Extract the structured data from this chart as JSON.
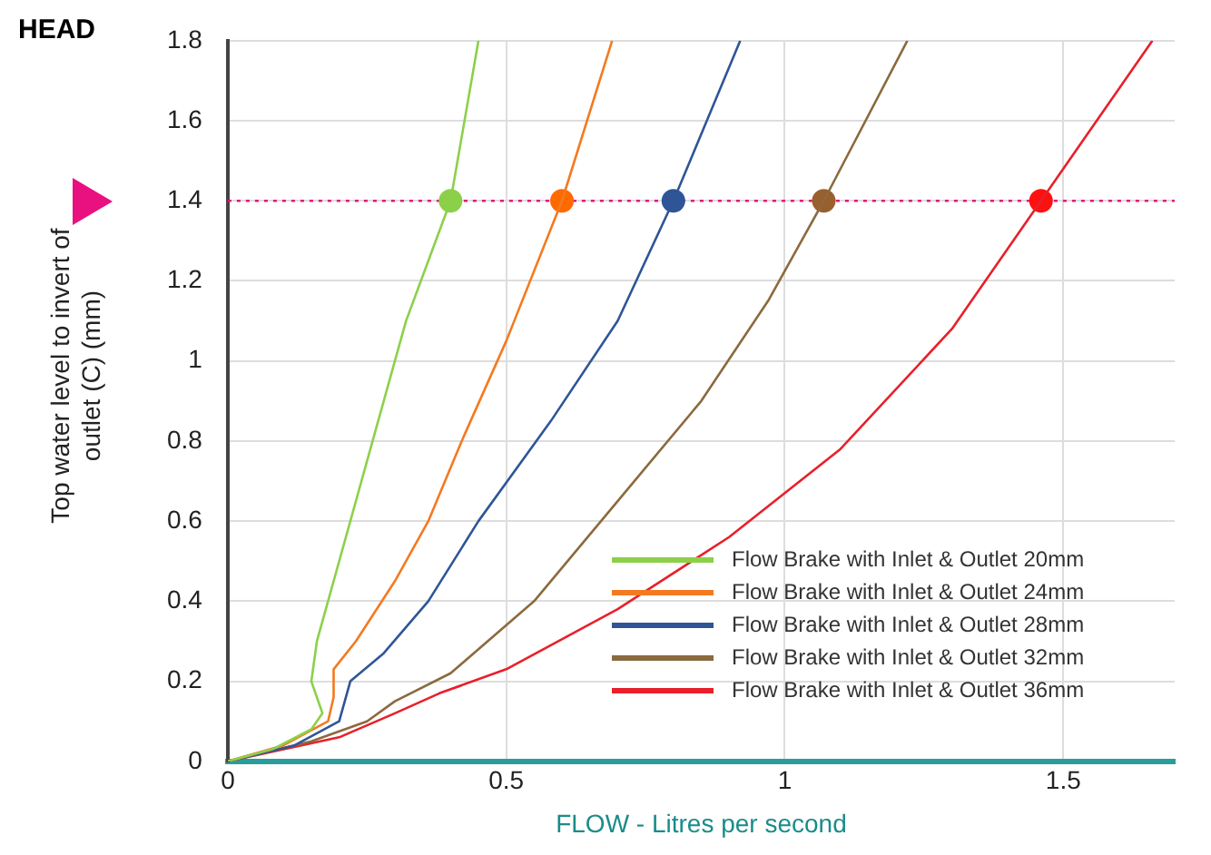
{
  "chart_data": {
    "type": "line",
    "xlabel": "FLOW - Litres per second",
    "ylabel": "Top water level to invert of outlet (C) (mm)",
    "annotations": [
      "HEAD"
    ],
    "xlim": [
      0,
      1.7
    ],
    "ylim": [
      0,
      1.8
    ],
    "xticks": [
      0,
      0.5,
      1,
      1.5
    ],
    "yticks": [
      0,
      0.2,
      0.4,
      0.6,
      0.8,
      1,
      1.2,
      1.4,
      1.6,
      1.8
    ],
    "grid": true,
    "legend": "bottom right",
    "marker": "none",
    "line_style": "solid",
    "ref_lines": [
      {
        "axis": "y",
        "value": 1.4,
        "color": "#e8117f",
        "line_style": "dotted"
      }
    ],
    "series": [
      {
        "name": "Flow Brake with Inlet & Outlet 20mm",
        "color": "#8cd04a",
        "x": [
          0,
          0.08,
          0.15,
          0.17,
          0.15,
          0.16,
          0.2,
          0.26,
          0.32,
          0.4,
          0.45
        ],
        "values": [
          0,
          0.03,
          0.08,
          0.12,
          0.2,
          0.3,
          0.5,
          0.8,
          1.1,
          1.4,
          1.8
        ]
      },
      {
        "name": "Flow Brake with Inlet & Outlet 24mm",
        "color": "#f47a20",
        "x": [
          0,
          0.1,
          0.18,
          0.19,
          0.19,
          0.23,
          0.3,
          0.36,
          0.42,
          0.5,
          0.6,
          0.69
        ],
        "values": [
          0,
          0.04,
          0.1,
          0.16,
          0.23,
          0.3,
          0.45,
          0.6,
          0.8,
          1.05,
          1.4,
          1.8
        ]
      },
      {
        "name": "Flow Brake with Inlet & Outlet 28mm",
        "color": "#2f5597",
        "x": [
          0,
          0.12,
          0.2,
          0.21,
          0.22,
          0.28,
          0.36,
          0.45,
          0.58,
          0.7,
          0.8,
          0.92
        ],
        "values": [
          0,
          0.04,
          0.1,
          0.15,
          0.2,
          0.27,
          0.4,
          0.6,
          0.85,
          1.1,
          1.4,
          1.8
        ]
      },
      {
        "name": "Flow Brake with Inlet & Outlet 32mm",
        "color": "#8b6a3e",
        "x": [
          0,
          0.15,
          0.25,
          0.3,
          0.4,
          0.55,
          0.7,
          0.85,
          0.97,
          1.07,
          1.22
        ],
        "values": [
          0,
          0.05,
          0.1,
          0.15,
          0.22,
          0.4,
          0.65,
          0.9,
          1.15,
          1.4,
          1.8
        ]
      },
      {
        "name": "Flow Brake with Inlet & Outlet 36mm",
        "color": "#e8202a",
        "x": [
          0,
          0.2,
          0.3,
          0.38,
          0.5,
          0.7,
          0.9,
          1.1,
          1.3,
          1.46,
          1.66
        ],
        "values": [
          0,
          0.06,
          0.12,
          0.17,
          0.23,
          0.38,
          0.56,
          0.78,
          1.08,
          1.4,
          1.8
        ]
      },
      {
        "type": "scatter",
        "marker": "circle",
        "x": [
          0.4,
          0.6,
          0.8,
          1.07,
          1.46
        ],
        "values": [
          1.4,
          1.4,
          1.4,
          1.4,
          1.4
        ],
        "colors": [
          "#8cd04a",
          "#ff6a00",
          "#2f5597",
          "#9a5f2e",
          "#ff1010"
        ]
      }
    ]
  }
}
